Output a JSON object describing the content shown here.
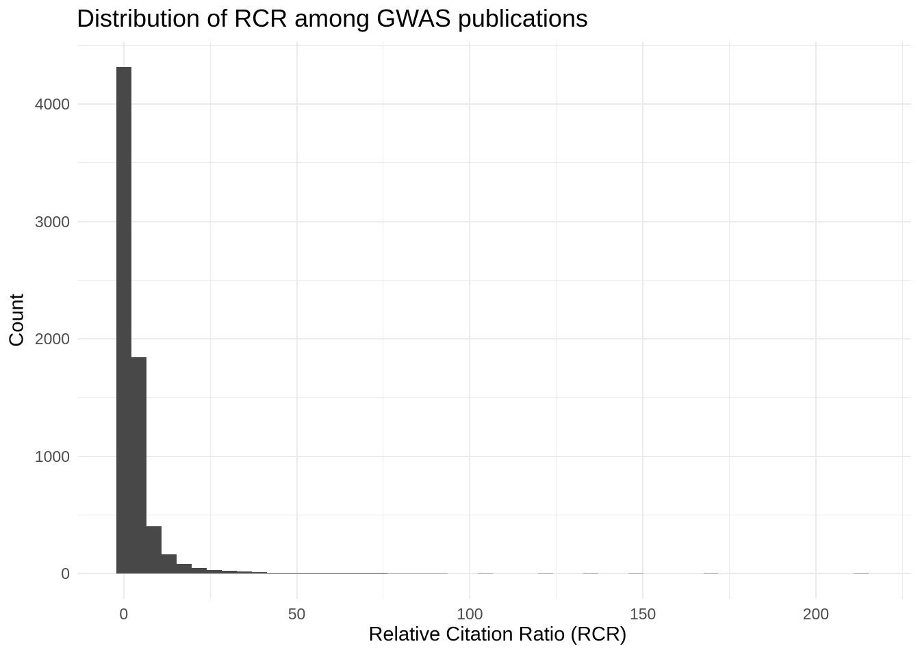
{
  "title": "Distribution of RCR among GWAS publications",
  "chart_data": {
    "type": "bar",
    "subtype": "histogram",
    "title": "Distribution of RCR among GWAS publications",
    "xlabel": "Relative Citation Ratio (RCR)",
    "ylabel": "Count",
    "grid": "on",
    "legend": "none",
    "bin_width": 4.35,
    "bins": [
      {
        "center": 0,
        "count": 4316
      },
      {
        "center": 4.35,
        "count": 1845
      },
      {
        "center": 8.7,
        "count": 403
      },
      {
        "center": 13.05,
        "count": 162
      },
      {
        "center": 17.4,
        "count": 85
      },
      {
        "center": 21.75,
        "count": 46
      },
      {
        "center": 26.1,
        "count": 32
      },
      {
        "center": 30.45,
        "count": 24
      },
      {
        "center": 34.8,
        "count": 16
      },
      {
        "center": 39.15,
        "count": 11
      },
      {
        "center": 43.5,
        "count": 8
      },
      {
        "center": 47.85,
        "count": 5
      },
      {
        "center": 52.2,
        "count": 4
      },
      {
        "center": 56.55,
        "count": 3
      },
      {
        "center": 60.9,
        "count": 3
      },
      {
        "center": 65.25,
        "count": 2
      },
      {
        "center": 69.6,
        "count": 2
      },
      {
        "center": 73.95,
        "count": 2
      },
      {
        "center": 78.3,
        "count": 1
      },
      {
        "center": 82.65,
        "count": 1
      },
      {
        "center": 87.0,
        "count": 1
      },
      {
        "center": 91.35,
        "count": 1
      },
      {
        "center": 104.4,
        "count": 1
      },
      {
        "center": 121.8,
        "count": 1
      },
      {
        "center": 134.85,
        "count": 1
      },
      {
        "center": 147.9,
        "count": 1
      },
      {
        "center": 169.65,
        "count": 1
      },
      {
        "center": 213.15,
        "count": 1
      }
    ],
    "x_ticks": [
      0,
      50,
      100,
      150,
      200
    ],
    "x_minor_ticks": [
      25,
      75,
      125,
      175,
      225
    ],
    "y_ticks": [
      0,
      1000,
      2000,
      3000,
      4000
    ],
    "y_minor_ticks": [
      500,
      1500,
      2500,
      3500,
      4500
    ],
    "xlim": [
      -13.2,
      227.5
    ],
    "ylim": [
      -215,
      4531
    ],
    "colors": {
      "bar": "#484848",
      "bar_single": "#9c9c9c",
      "grid": "#ebebeb",
      "tick_label": "#4d4d4d",
      "title_text": "#000000",
      "background": "#ffffff"
    }
  }
}
